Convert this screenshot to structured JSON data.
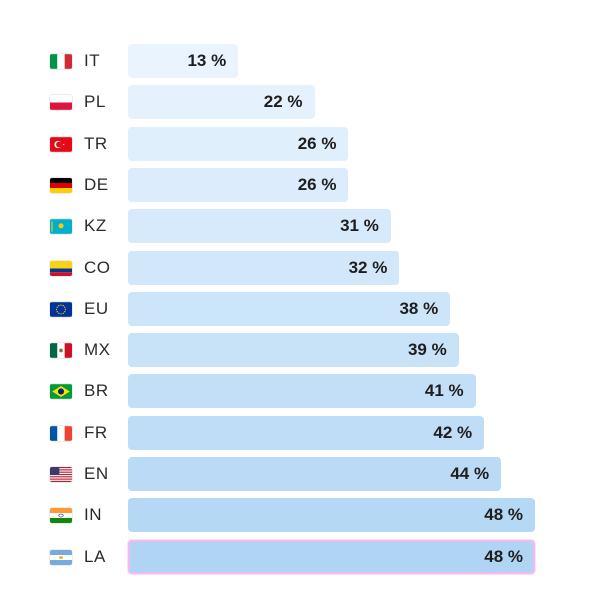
{
  "chart_data": {
    "type": "bar",
    "orientation": "horizontal",
    "categories": [
      "IT",
      "PL",
      "TR",
      "DE",
      "KZ",
      "CO",
      "EU",
      "MX",
      "BR",
      "FR",
      "EN",
      "IN",
      "LA"
    ],
    "values": [
      13,
      22,
      26,
      26,
      31,
      32,
      38,
      39,
      41,
      42,
      44,
      48,
      48
    ],
    "value_labels": [
      "13 %",
      "22 %",
      "26 %",
      "26 %",
      "31 %",
      "32 %",
      "38 %",
      "39 %",
      "41 %",
      "42 %",
      "44 %",
      "48 %",
      "48 %"
    ],
    "flags": [
      "italy-flag",
      "poland-flag",
      "turkey-flag",
      "germany-flag",
      "kazakhstan-flag",
      "colombia-flag",
      "eu-flag",
      "mexico-flag",
      "brazil-flag",
      "france-flag",
      "usa-flag",
      "india-flag",
      "argentina-flag"
    ],
    "highlighted": "LA",
    "title": "",
    "xlabel": "",
    "ylabel": "",
    "xlim": [
      0,
      48
    ],
    "colors": {
      "bar_light": "#eaf4fe",
      "bar_dark": "#b0d5f4",
      "highlight_border": "#f3b8f0"
    }
  }
}
